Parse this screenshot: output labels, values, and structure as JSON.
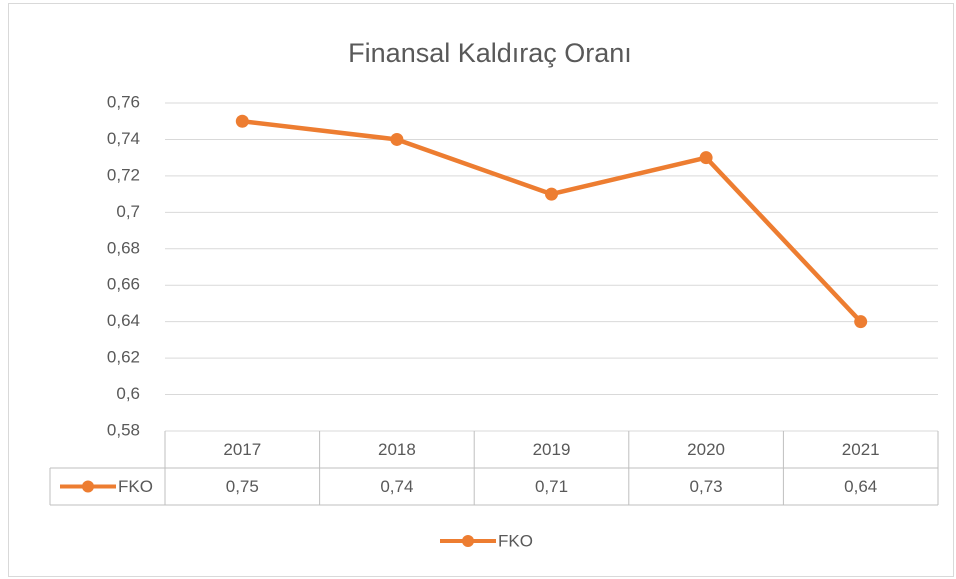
{
  "chart_data": {
    "type": "line",
    "title": "Finansal Kaldıraç Oranı",
    "categories": [
      "2017",
      "2018",
      "2019",
      "2020",
      "2021"
    ],
    "series": [
      {
        "name": "FKO",
        "color": "#ed7d31",
        "values": [
          0.75,
          0.74,
          0.71,
          0.73,
          0.64
        ],
        "value_labels": [
          "0,75",
          "0,74",
          "0,71",
          "0,73",
          "0,64"
        ]
      }
    ],
    "ylim": [
      0.58,
      0.76
    ],
    "yticks": [
      {
        "value": 0.58,
        "label": "0,58"
      },
      {
        "value": 0.6,
        "label": "0,6"
      },
      {
        "value": 0.62,
        "label": "0,62"
      },
      {
        "value": 0.64,
        "label": "0,64"
      },
      {
        "value": 0.66,
        "label": "0,66"
      },
      {
        "value": 0.68,
        "label": "0,68"
      },
      {
        "value": 0.7,
        "label": "0,7"
      },
      {
        "value": 0.72,
        "label": "0,72"
      },
      {
        "value": 0.74,
        "label": "0,74"
      },
      {
        "value": 0.76,
        "label": "0,76"
      }
    ],
    "grid": true,
    "legend": "bottom"
  }
}
